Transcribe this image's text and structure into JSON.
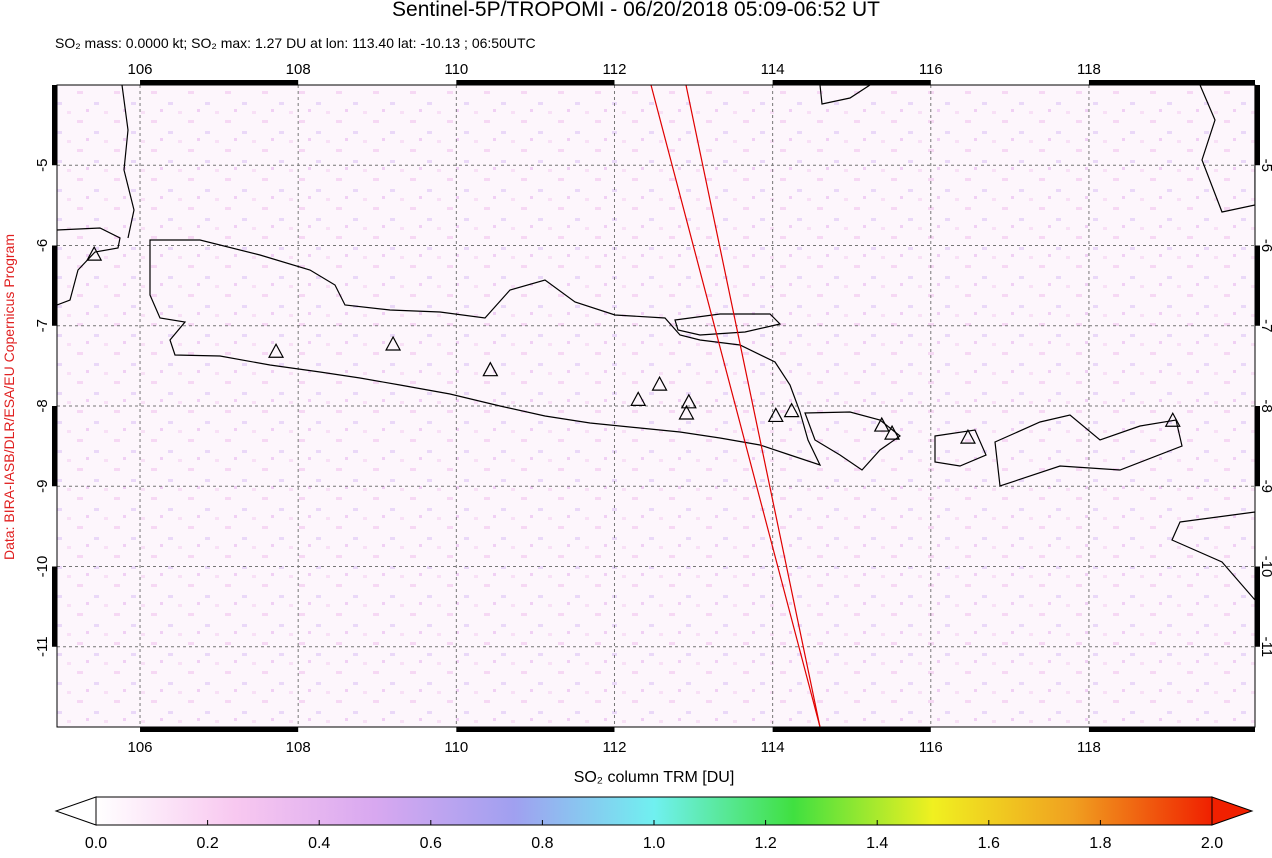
{
  "title": "Sentinel-5P/TROPOMI - 06/20/2018 05:09-06:52 UT",
  "subtitle": "SO₂ mass: 0.0000 kt; SO₂ max: 1.27 DU at lon: 113.40 lat: -10.13 ; 06:50UTC",
  "credit": "Data: BIRA-IASB/DLR/ESA/EU Copernicus Program",
  "map": {
    "xlim": [
      104.95,
      120.1
    ],
    "ylim": [
      -12.0,
      -4.0
    ],
    "xticks": [
      106,
      108,
      110,
      112,
      114,
      116,
      118
    ],
    "yticks": [
      -5,
      -6,
      -7,
      -8,
      -9,
      -10,
      -11
    ],
    "grid": true,
    "swath_color": "#e00000",
    "volcanoes": {
      "lon": [
        105.42,
        107.72,
        109.2,
        110.43,
        112.3,
        112.57,
        112.94,
        112.91,
        114.04,
        114.24,
        115.38,
        115.51,
        116.47,
        119.06
      ],
      "lat": [
        -6.12,
        -7.33,
        -7.24,
        -7.56,
        -7.93,
        -7.74,
        -7.96,
        -8.1,
        -8.13,
        -8.07,
        -8.25,
        -8.35,
        -8.4,
        -8.19
      ]
    }
  },
  "colorbar": {
    "label": "SO₂ column TRM [DU]",
    "lim": [
      0,
      2
    ],
    "ticks": [
      {
        "value": 0,
        "label": "0.0"
      },
      0.2,
      0.4,
      0.6,
      0.8,
      {
        "value": 1,
        "label": "1.0"
      },
      1.2,
      1.4,
      1.6,
      1.8,
      {
        "value": 2,
        "label": "2.0"
      }
    ],
    "colors": [
      "#ffffff",
      "#f8c8f0",
      "#d8a8f0",
      "#a0a0f0",
      "#70f0f0",
      "#40e040",
      "#f0f020",
      "#f0a020",
      "#f02000"
    ]
  }
}
